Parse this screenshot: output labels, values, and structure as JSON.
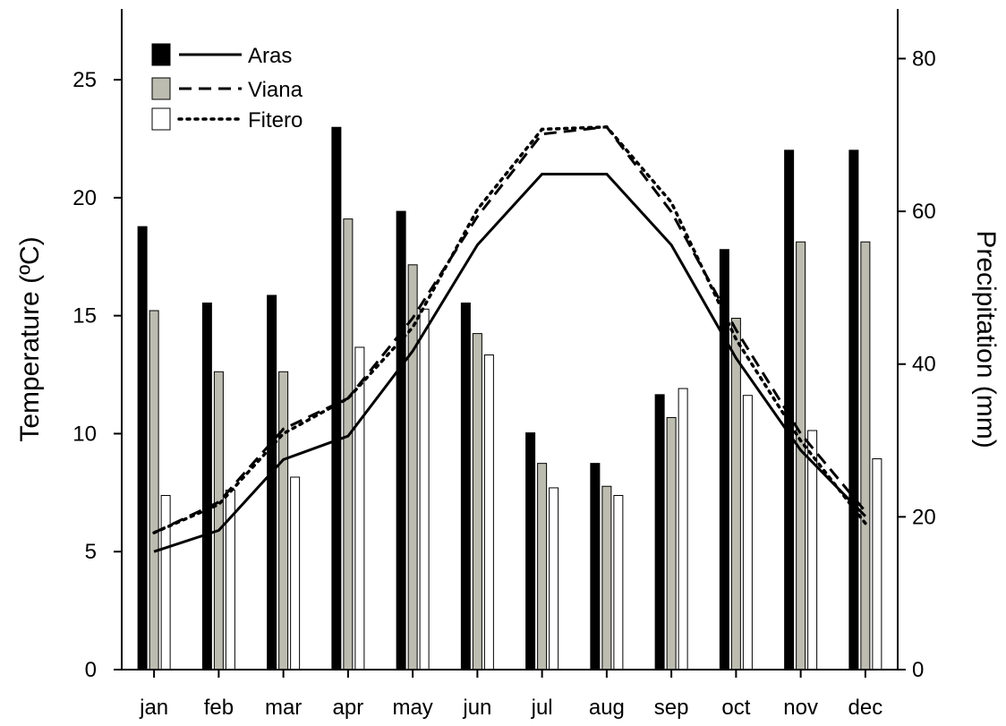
{
  "chart_data": {
    "type": "bar+line",
    "categories": [
      "jan",
      "feb",
      "mar",
      "apr",
      "may",
      "jun",
      "jul",
      "aug",
      "sep",
      "oct",
      "nov",
      "dec"
    ],
    "y_left": {
      "label": "Temperature (ºC)",
      "lim": [
        0,
        28
      ],
      "ticks": [
        0,
        5,
        10,
        15,
        20,
        25
      ]
    },
    "y_right": {
      "label": "Precipitation (mm)",
      "lim": [
        0,
        86.5
      ],
      "ticks": [
        0,
        20,
        40,
        60,
        80
      ]
    },
    "precipitation": [
      {
        "name": "Aras",
        "color": "#000000",
        "values": [
          58,
          48,
          49,
          71,
          60,
          48,
          31,
          27,
          36,
          55,
          68,
          68
        ]
      },
      {
        "name": "Viana",
        "color": "#bcbcb0",
        "values": [
          47,
          39,
          39,
          59,
          53,
          44,
          27,
          24,
          33,
          46,
          56,
          56
        ]
      },
      {
        "name": "Fitero",
        "color": "#ffffff",
        "values": [
          22.8,
          23.5,
          25.2,
          42.2,
          47.2,
          41.2,
          23.8,
          22.8,
          36.8,
          35.9,
          31.3,
          27.6
        ]
      }
    ],
    "temperature": [
      {
        "name": "Aras",
        "style": "solid",
        "values": [
          5.0,
          5.9,
          8.9,
          9.9,
          13.5,
          18.0,
          21.0,
          21.0,
          18.0,
          13.2,
          9.3,
          6.5
        ]
      },
      {
        "name": "Viana",
        "style": "dashed",
        "values": [
          5.8,
          7.1,
          10.2,
          11.5,
          14.9,
          19.2,
          22.7,
          23.0,
          19.4,
          14.4,
          10.0,
          6.7
        ]
      },
      {
        "name": "Fitero",
        "style": "dotted",
        "values": [
          5.8,
          7.0,
          10.0,
          11.5,
          14.5,
          19.5,
          22.9,
          23.0,
          19.8,
          14.0,
          9.7,
          6.2
        ]
      }
    ],
    "legend": [
      "Aras",
      "Viana",
      "Fitero"
    ],
    "legend_position": "top-left",
    "grid": false
  }
}
